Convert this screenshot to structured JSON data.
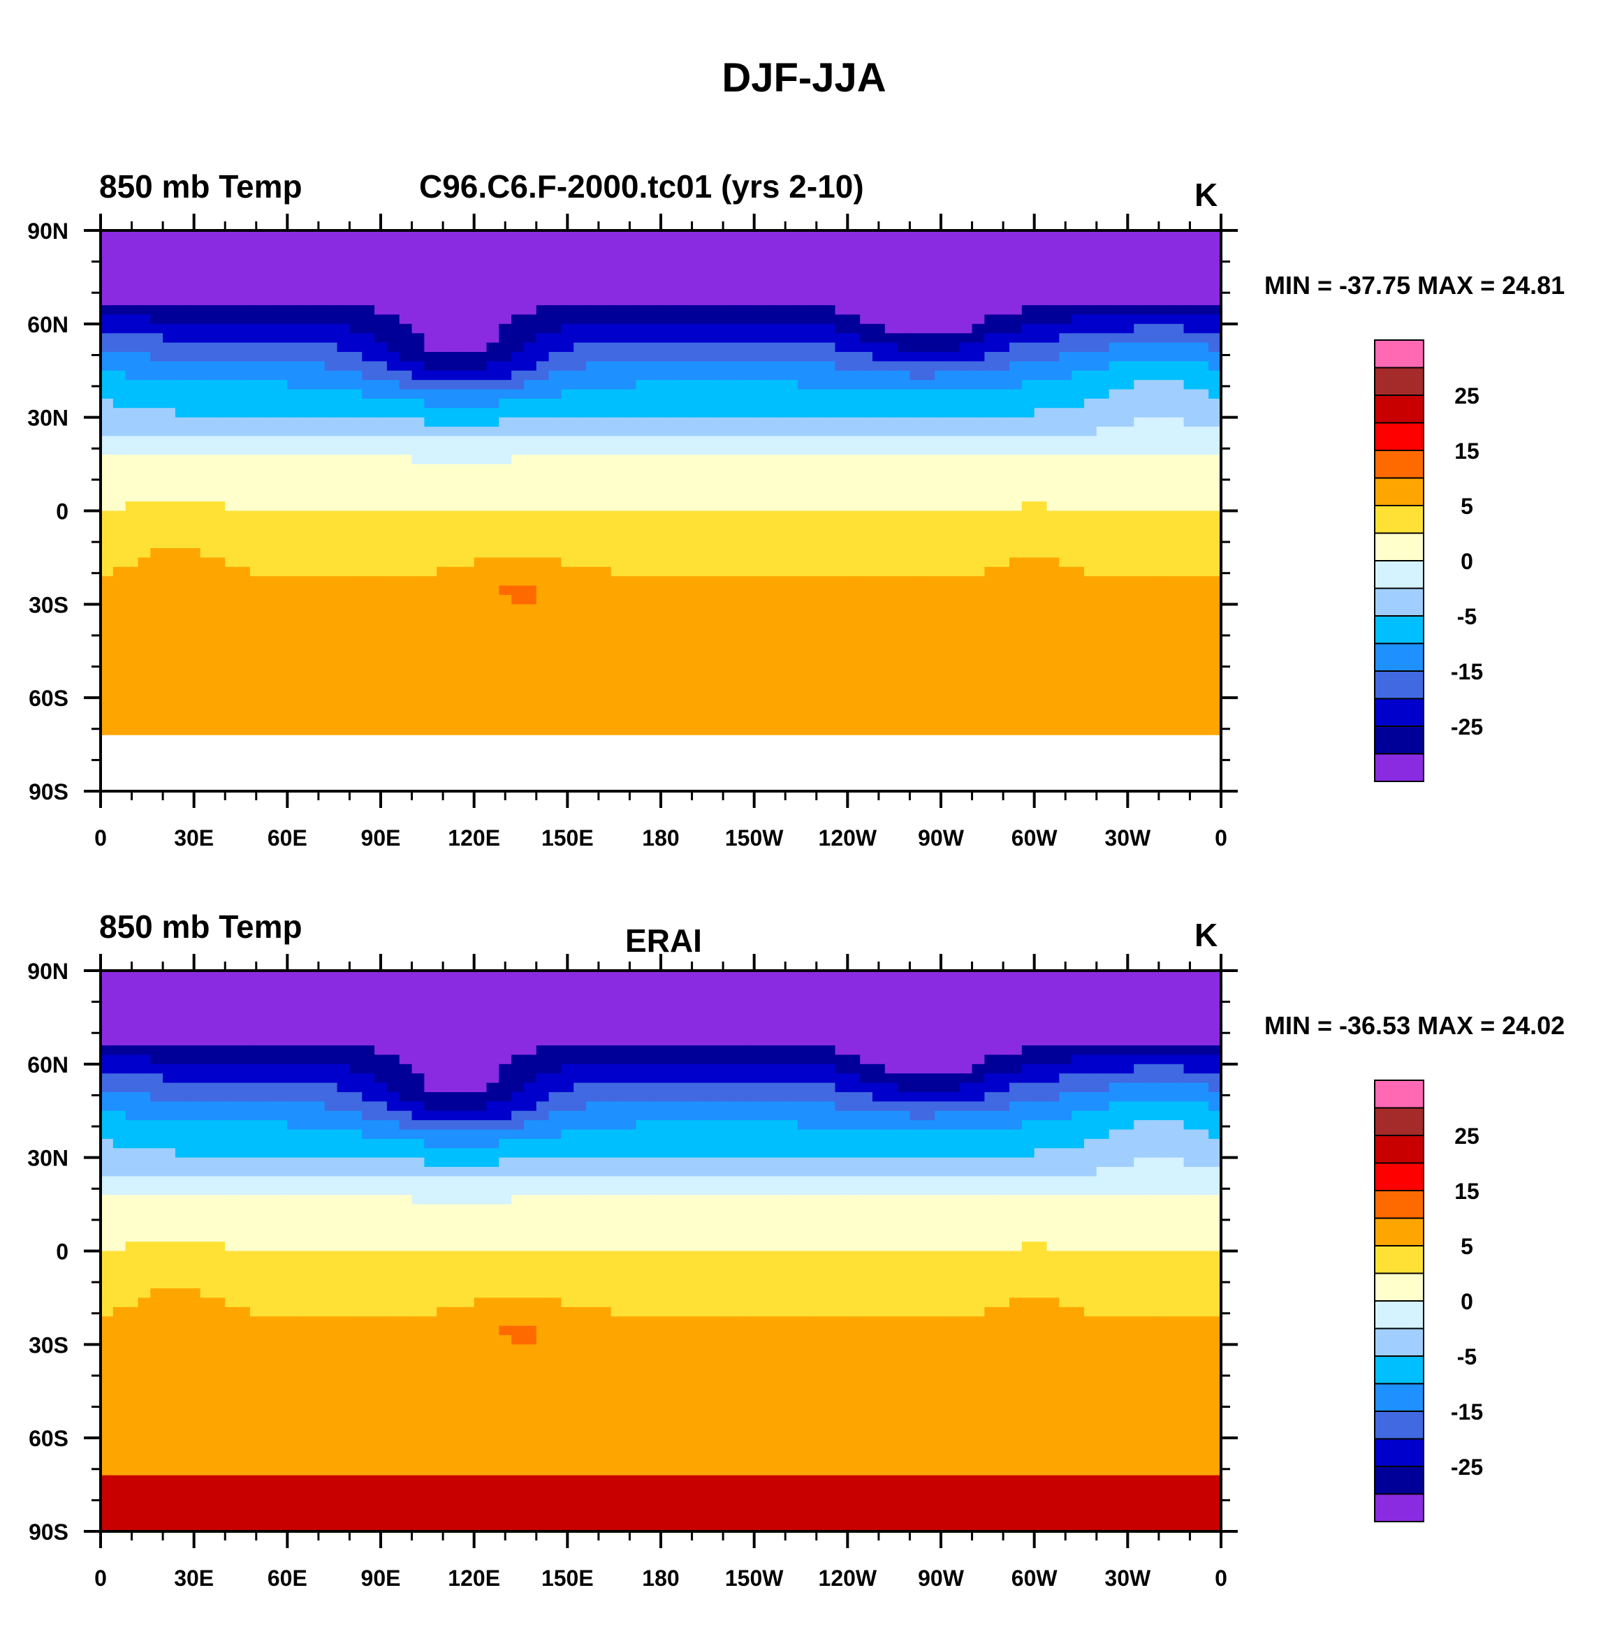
{
  "figure_title": "DJF-JJA",
  "palette": [
    "#8a2be2",
    "#000099",
    "#0000cd",
    "#4169e1",
    "#1e90ff",
    "#00bfff",
    "#a0cfff",
    "#d4f2ff",
    "#ffffcc",
    "#ffe135",
    "#ffa500",
    "#ff6a00",
    "#ff0000",
    "#c80000",
    "#a52a2a",
    "#ff69b4"
  ],
  "colorbar_labels": [
    "25",
    "15",
    "5",
    "0",
    "-5",
    "-15",
    "-25"
  ],
  "chart_data": [
    {
      "type": "heatmap",
      "title": "850 mb Temp",
      "case": "C96.C6.F-2000.tc01 (yrs 2-10)",
      "units": "K",
      "min_max": "MIN = -37.75 MAX =  24.81",
      "min": -37.75,
      "max": 24.81,
      "xlim": [
        0,
        360
      ],
      "ylim": [
        -90,
        90
      ],
      "xticks": [
        "0",
        "30E",
        "60E",
        "90E",
        "120E",
        "150E",
        "180",
        "150W",
        "120W",
        "90W",
        "60W",
        "30W",
        "0"
      ],
      "yticks": [
        "90N",
        "60N",
        "30N",
        "0",
        "30S",
        "60S",
        "90S"
      ],
      "colorbar_levels": [
        -30,
        -25,
        -20,
        -15,
        -10,
        -5,
        -2,
        0,
        2,
        5,
        10,
        15,
        20,
        25,
        30
      ]
    },
    {
      "type": "heatmap",
      "title": "850 mb Temp",
      "case": "ERAI",
      "units": "K",
      "min_max": "MIN = -36.53 MAX =  24.02",
      "min": -36.53,
      "max": 24.02,
      "xlim": [
        0,
        360
      ],
      "ylim": [
        -90,
        90
      ],
      "xticks": [
        "0",
        "30E",
        "60E",
        "90E",
        "120E",
        "150E",
        "180",
        "150W",
        "120W",
        "90W",
        "60W",
        "30W",
        "0"
      ],
      "yticks": [
        "90N",
        "60N",
        "30N",
        "0",
        "30S",
        "60S",
        "90S"
      ],
      "colorbar_levels": [
        -30,
        -25,
        -20,
        -15,
        -10,
        -5,
        -2,
        0,
        2,
        5,
        10,
        15,
        20,
        25,
        30
      ]
    }
  ]
}
